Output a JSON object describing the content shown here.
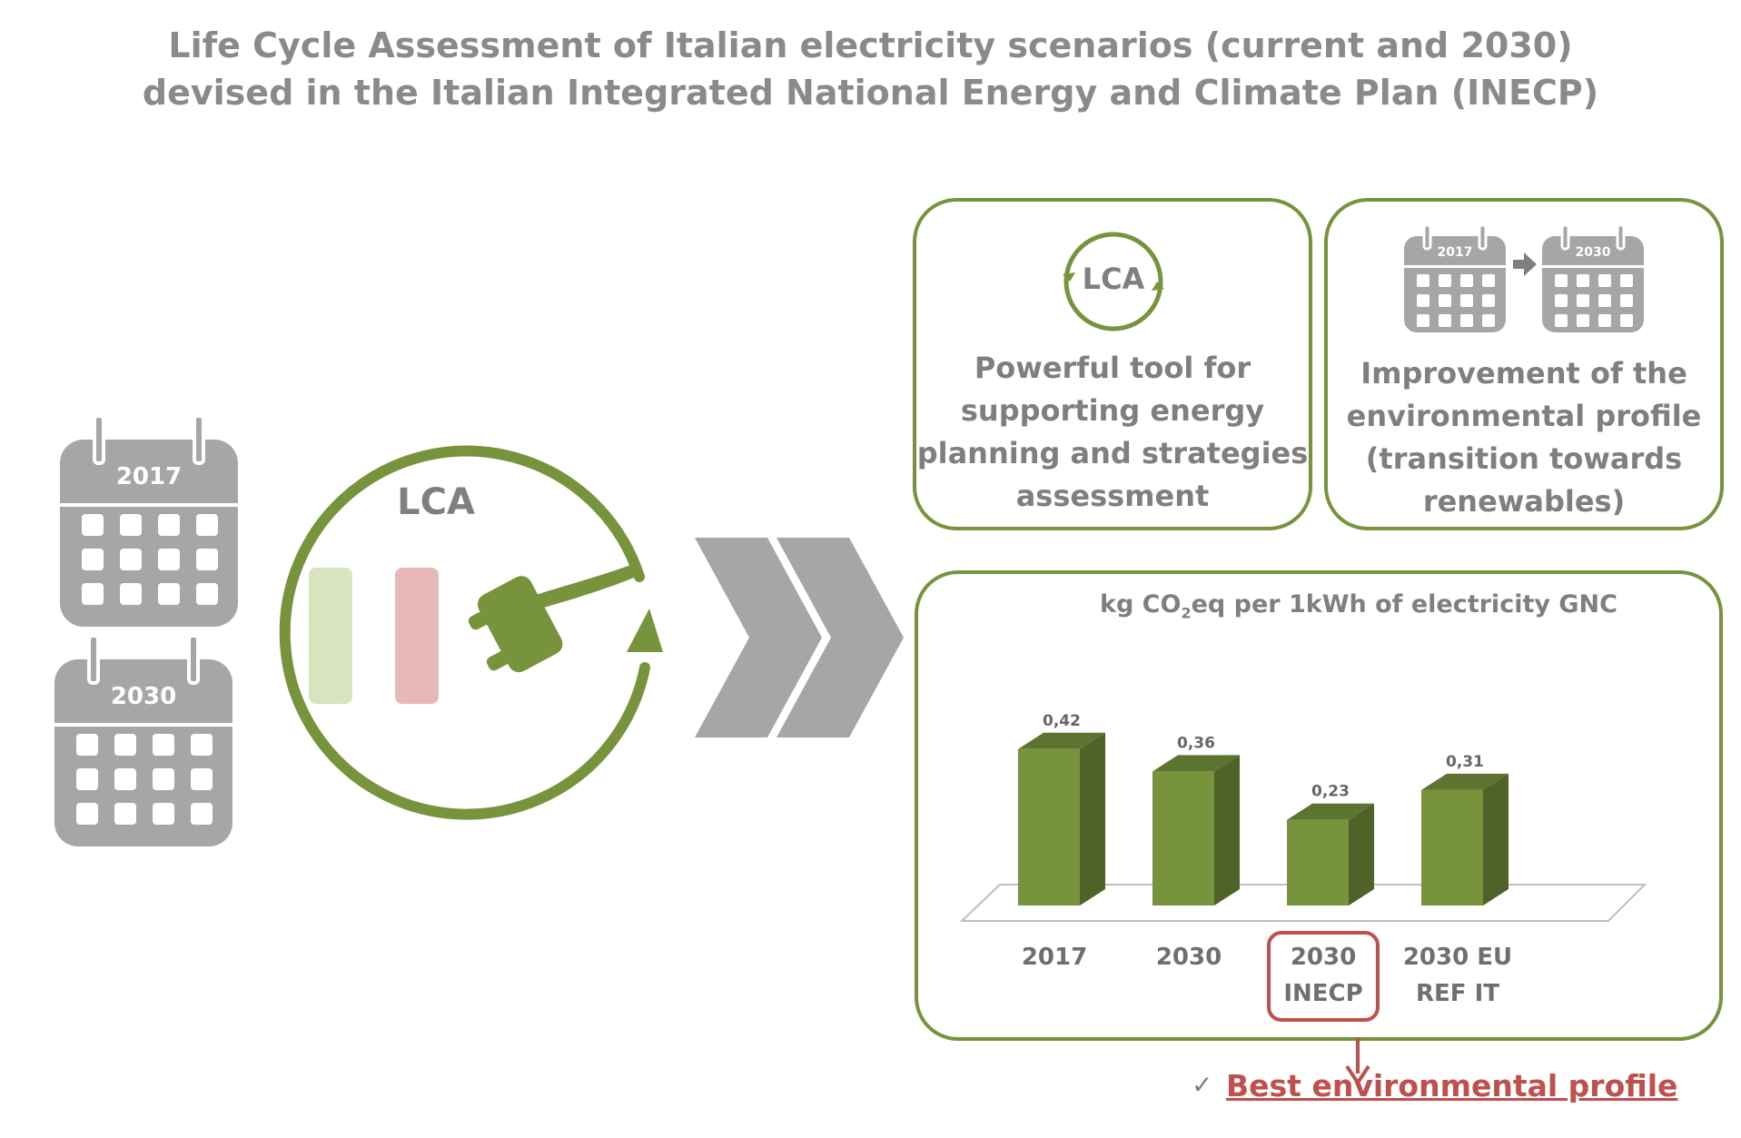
{
  "title": {
    "line1": "Life Cycle Assessment of Italian electricity scenarios (current and 2030)",
    "line2": "devised in the Italian Integrated National Energy and Climate Plan (INECP)"
  },
  "left_calendars": [
    "2017",
    "2030"
  ],
  "lca_big_label": "LCA",
  "card_tool": {
    "icon_label": "LCA",
    "lines": [
      "Powerful tool for",
      "supporting energy",
      "planning  and strategies",
      "assessment"
    ]
  },
  "card_improvement": {
    "calendars": [
      "2017",
      "2030"
    ],
    "lines": [
      "Improvement of the",
      "environmental profile",
      "(transition towards",
      "renewables)"
    ]
  },
  "chart_data": {
    "type": "bar",
    "title_parts": [
      "kg CO",
      "2",
      "eq per 1kWh of electricity GNC"
    ],
    "categories": [
      [
        "2017"
      ],
      [
        "2030"
      ],
      [
        "2030",
        "INECP"
      ],
      [
        "2030 EU",
        "REF IT"
      ]
    ],
    "values": [
      0.42,
      0.36,
      0.23,
      0.31
    ],
    "value_labels": [
      "0,42",
      "0,36",
      "0,23",
      "0,31"
    ],
    "highlight_index": 2,
    "bar_color": "#77933c",
    "highlight_color": "#c0504d"
  },
  "best_profile": {
    "check": "✓",
    "text": "Best environmental profile"
  },
  "colors": {
    "green": "#77933c",
    "gray": "#a6a6a6",
    "red": "#c0504d",
    "flag_green": "#d7e4bd",
    "flag_red": "#e6b9b8"
  }
}
